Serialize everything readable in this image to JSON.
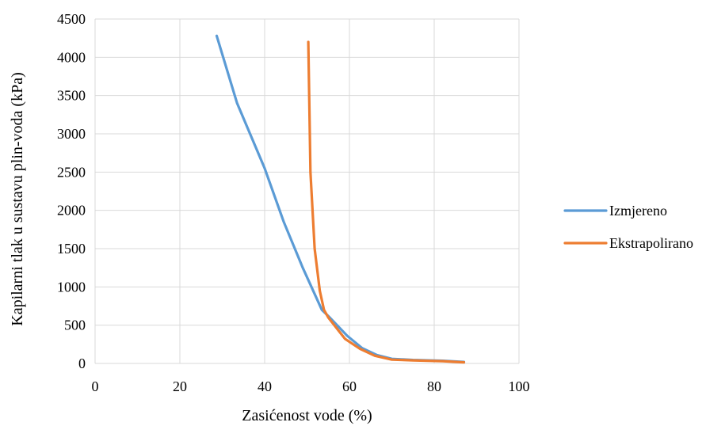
{
  "chart_data": {
    "type": "line",
    "xlabel": "Zasićenost vode (%)",
    "ylabel": "Kapilarni tlak u sustavu plin-voda (kPa)",
    "xlim": [
      0,
      100
    ],
    "ylim": [
      0,
      4500
    ],
    "xticks": [
      0,
      20,
      40,
      60,
      80,
      100
    ],
    "yticks": [
      0,
      500,
      1000,
      1500,
      2000,
      2500,
      3000,
      3500,
      4000,
      4500
    ],
    "grid": true,
    "legend_position": "right",
    "series": [
      {
        "name": "Izmjereno",
        "color": "#5b9bd5",
        "points": [
          [
            28.7,
            4280
          ],
          [
            33.5,
            3400
          ],
          [
            40.0,
            2550
          ],
          [
            44.5,
            1850
          ],
          [
            49.0,
            1250
          ],
          [
            53.5,
            700
          ],
          [
            55.0,
            620
          ],
          [
            59.5,
            360
          ],
          [
            63.0,
            200
          ],
          [
            66.5,
            110
          ],
          [
            70.0,
            60
          ],
          [
            75.0,
            45
          ],
          [
            82.0,
            35
          ],
          [
            87.0,
            20
          ]
        ]
      },
      {
        "name": "Ekstrapolirano",
        "color": "#ed7d31",
        "points": [
          [
            50.3,
            4200
          ],
          [
            50.8,
            2500
          ],
          [
            51.8,
            1500
          ],
          [
            53.0,
            950
          ],
          [
            54.0,
            700
          ],
          [
            55.0,
            600
          ],
          [
            59.0,
            320
          ],
          [
            62.5,
            190
          ],
          [
            66.0,
            100
          ],
          [
            70.0,
            50
          ],
          [
            75.0,
            40
          ],
          [
            82.0,
            30
          ],
          [
            87.0,
            15
          ]
        ]
      }
    ]
  }
}
